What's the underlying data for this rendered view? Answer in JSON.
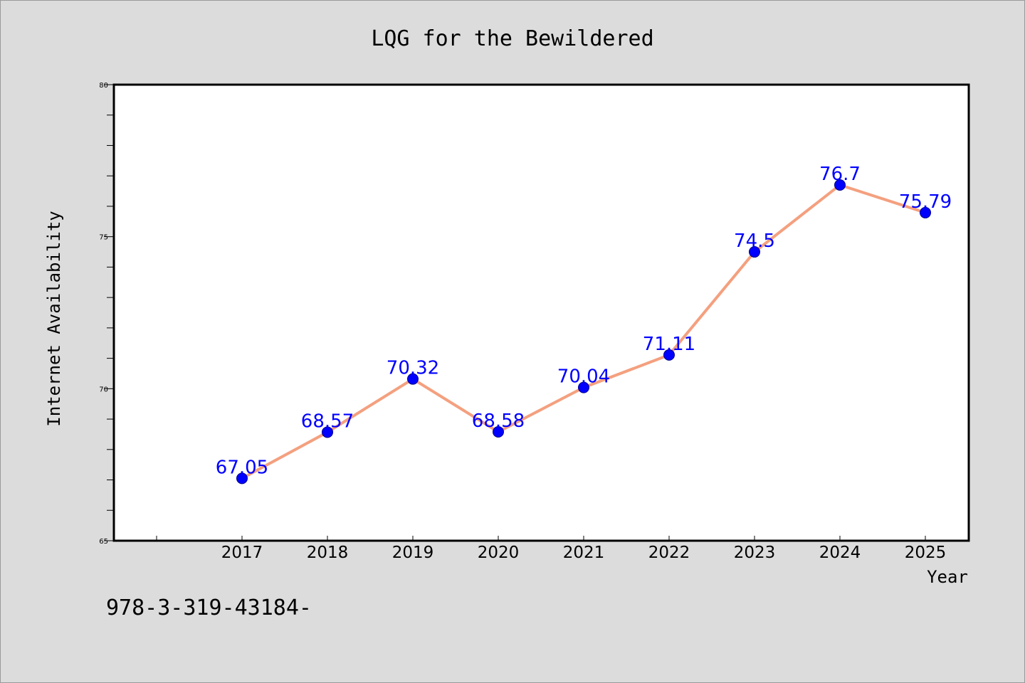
{
  "chart_data": {
    "type": "line",
    "title": "LQG for the Bewildered",
    "xlabel": "Year",
    "ylabel": "Internet Availability",
    "categories": [
      "2017",
      "2018",
      "2019",
      "2020",
      "2021",
      "2022",
      "2023",
      "2024",
      "2025"
    ],
    "values": [
      67.05,
      68.57,
      70.32,
      68.58,
      70.04,
      71.11,
      74.5,
      76.7,
      75.79
    ],
    "data_labels": [
      "67.05",
      "68.57",
      "70.32",
      "68.58",
      "70.04",
      "71.11",
      "74.5",
      "76.7",
      "75.79"
    ],
    "ylim": [
      65,
      80
    ],
    "yticks": [
      65,
      70,
      75,
      80
    ],
    "grid": false,
    "line_color": "#f4a07f",
    "marker_color": "#0000ff",
    "background_color": "#dcdcdc",
    "plot_background": "#ffffff"
  },
  "footnote": "978-3-319-43184-"
}
